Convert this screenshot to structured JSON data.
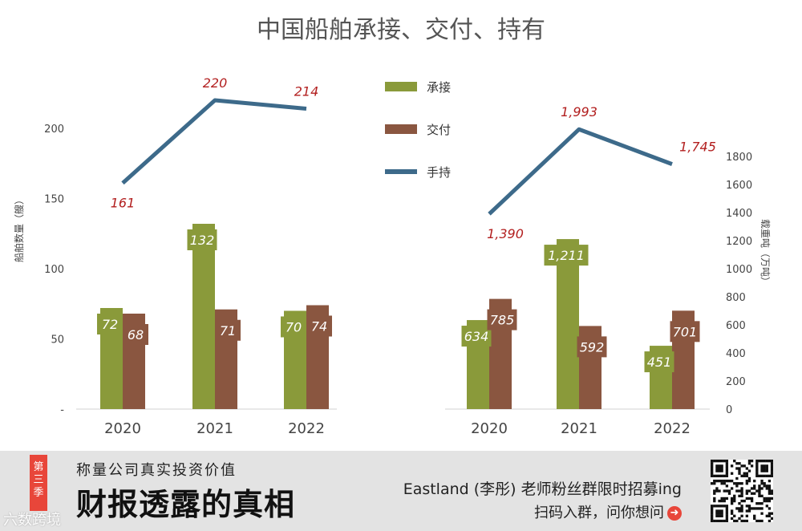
{
  "chart_data": {
    "title": "中国船舶承接、交付、持有",
    "type": "bar",
    "left_axis": {
      "label": "船舶数量（艘）",
      "ticks": [
        "-",
        "50",
        "100",
        "150",
        "200"
      ],
      "ylim": [
        0,
        240
      ]
    },
    "right_axis": {
      "label": "载重吨（万吨）",
      "ticks": [
        "0",
        "200",
        "400",
        "600",
        "800",
        "1000",
        "1200",
        "1400",
        "1600",
        "1800"
      ],
      "ylim": [
        0,
        2400
      ]
    },
    "legend": {
      "position": "top-center",
      "items": [
        {
          "name": "承接",
          "color": "#8a9a3a",
          "kind": "bar"
        },
        {
          "name": "交付",
          "color": "#8a5640",
          "kind": "bar"
        },
        {
          "name": "手持",
          "color": "#3d6a8a",
          "kind": "line"
        }
      ]
    },
    "panels": [
      {
        "axis": "left",
        "categories": [
          "2020",
          "2021",
          "2022"
        ],
        "series": [
          {
            "name": "承接",
            "values": [
              72,
              132,
              70
            ],
            "labels": [
              "72",
              "132",
              "70"
            ]
          },
          {
            "name": "交付",
            "values": [
              68,
              71,
              74
            ],
            "labels": [
              "68",
              "71",
              "74"
            ]
          },
          {
            "name": "手持",
            "values": [
              161,
              220,
              214
            ],
            "labels": [
              "161",
              "220",
              "214"
            ]
          }
        ]
      },
      {
        "axis": "right",
        "categories": [
          "2020",
          "2021",
          "2022"
        ],
        "series": [
          {
            "name": "承接",
            "values": [
              634,
              1211,
              451
            ],
            "labels": [
              "634",
              "1,211",
              "451"
            ]
          },
          {
            "name": "交付",
            "values": [
              785,
              592,
              701
            ],
            "labels": [
              "785",
              "592",
              "701"
            ]
          },
          {
            "name": "手持",
            "values": [
              1390,
              1993,
              1745
            ],
            "labels": [
              "1,390",
              "1,993",
              "1,745"
            ]
          }
        ]
      }
    ]
  },
  "banner": {
    "season": [
      "第",
      "三",
      "季"
    ],
    "subtitle": "称量公司真实投资价值",
    "main_title": "财报透露的真相",
    "recruit": "Eastland (李彤) 老师粉丝群限时招募ing",
    "scan": "扫码入群，问你想问",
    "arrow_icon": "arrow-right-circle-icon",
    "watermark": "六数跨境"
  }
}
